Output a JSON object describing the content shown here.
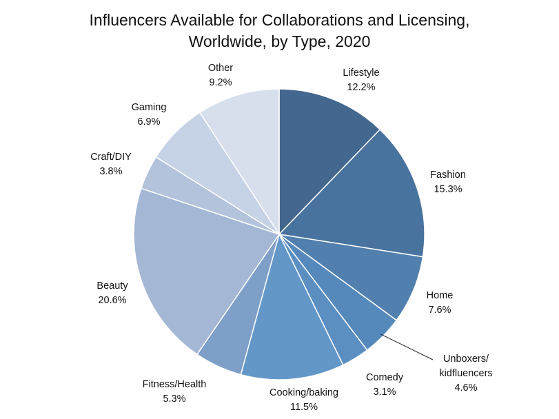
{
  "chart_data": {
    "type": "pie",
    "title_line1": "Influencers Available for Collaborations and Licensing,",
    "title_line2": "Worldwide, by Type, 2020",
    "slices": [
      {
        "name": "Lifestyle",
        "value": 12.2,
        "value_label": "12.2%",
        "color": "#43678e"
      },
      {
        "name": "Fashion",
        "value": 15.3,
        "value_label": "15.3%",
        "color": "#49739f"
      },
      {
        "name": "Home",
        "value": 7.6,
        "value_label": "7.6%",
        "color": "#5180ae"
      },
      {
        "name": "Unboxers/ kidfluencers",
        "name_lines": [
          "Unboxers/",
          "kidfluencers"
        ],
        "value": 4.6,
        "value_label": "4.6%",
        "color": "#5689bb"
      },
      {
        "name": "Comedy",
        "value": 3.1,
        "value_label": "3.1%",
        "color": "#5b8fc2"
      },
      {
        "name": "Cooking/baking",
        "value": 11.5,
        "value_label": "11.5%",
        "color": "#6397c8"
      },
      {
        "name": "Fitness/Health",
        "value": 5.3,
        "value_label": "5.3%",
        "color": "#7e9fc8"
      },
      {
        "name": "Beauty",
        "value": 20.6,
        "value_label": "20.6%",
        "color": "#a4b7d5"
      },
      {
        "name": "Craft/DIY",
        "value": 3.8,
        "value_label": "3.8%",
        "color": "#b3c3dc"
      },
      {
        "name": "Gaming",
        "value": 6.9,
        "value_label": "6.9%",
        "color": "#c6d2e5"
      },
      {
        "name": "Other",
        "value": 9.2,
        "value_label": "9.2%",
        "color": "#d7dfed"
      }
    ],
    "start_angle": "12 o'clock",
    "direction": "clockwise"
  }
}
